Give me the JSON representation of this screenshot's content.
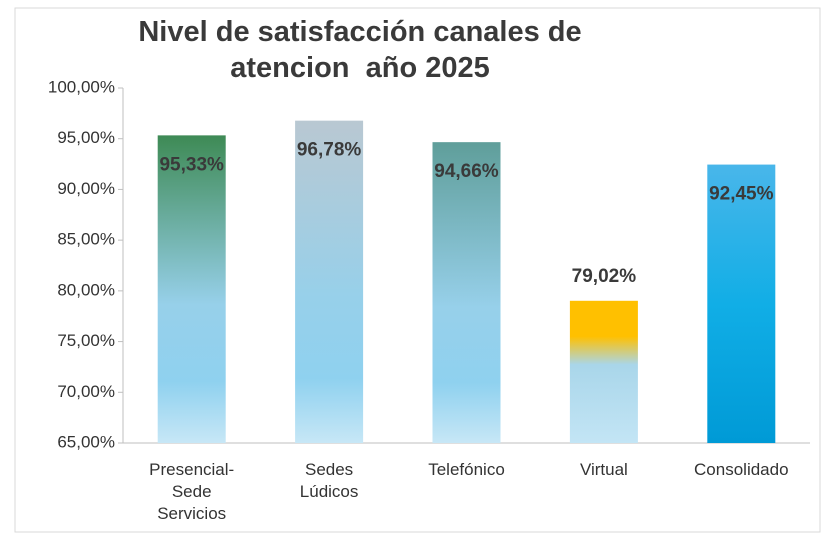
{
  "chart_data": {
    "type": "bar",
    "title": "Nivel de satisfacción canales de atencion  año 2025",
    "categories": [
      "Presencial-Sede Servicios",
      "Sedes Lúdicos",
      "Telefónico",
      "Virtual",
      "Consolidado"
    ],
    "values": [
      95.33,
      96.78,
      94.66,
      79.02,
      92.45
    ],
    "value_labels": [
      "95,33%",
      "96,78%",
      "94,66%",
      "79,02%",
      "92,45%"
    ],
    "colors": [
      "#3e8a55",
      "#b9c8d2",
      "#5f9e9a",
      "#ffc000",
      "#0ea7df"
    ],
    "ylim": [
      65,
      100
    ],
    "yticks": [
      {
        "value": 65,
        "label": "65,00%"
      },
      {
        "value": 70,
        "label": "70,00%"
      },
      {
        "value": 75,
        "label": "75,00%"
      },
      {
        "value": 80,
        "label": "80,00%"
      },
      {
        "value": 85,
        "label": "85,00%"
      },
      {
        "value": 90,
        "label": "90,00%"
      },
      {
        "value": 95,
        "label": "95,00%"
      },
      {
        "value": 100,
        "label": "100,00%"
      }
    ],
    "grid": false
  }
}
